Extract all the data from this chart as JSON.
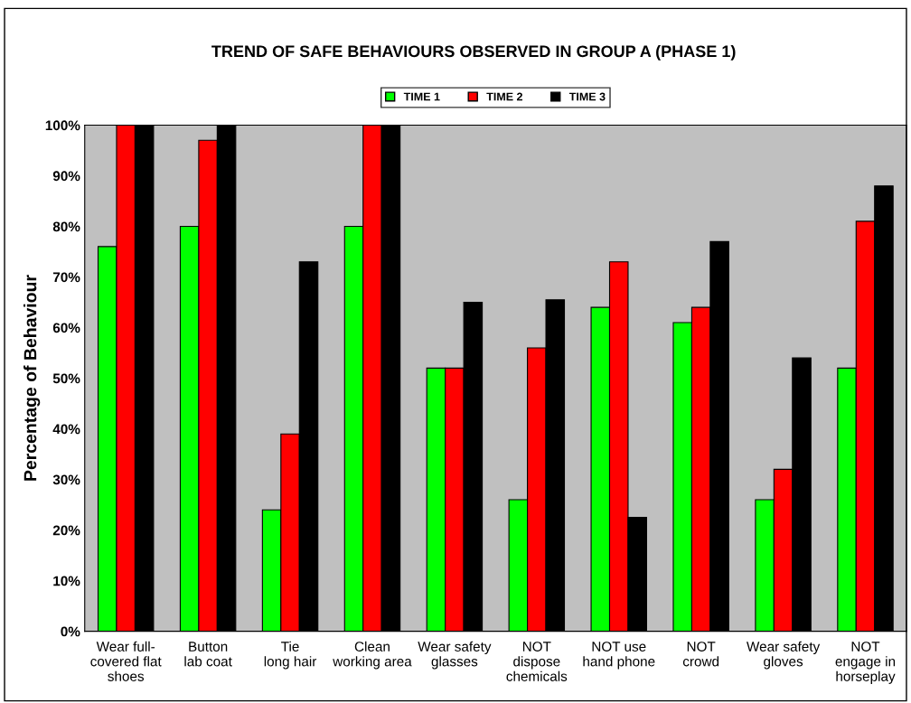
{
  "chart_data": {
    "type": "bar",
    "title": "TREND OF SAFE BEHAVIOURS OBSERVED IN GROUP A (PHASE 1)",
    "ylabel": "Percentage of Behaviour",
    "categories": [
      "Wear full-\ncovered flat\nshoes",
      "Button\nlab coat",
      "Tie\nlong hair",
      "Clean\nworking area",
      "Wear safety\nglasses",
      "NOT\ndispose\nchemicals",
      "NOT use\nhand phone",
      "NOT\ncrowd",
      "Wear safety\ngloves",
      "NOT\nengage in\nhorseplay"
    ],
    "series": [
      {
        "name": "TIME 1",
        "color": "#00ff00",
        "values": [
          76,
          80,
          24,
          80,
          52,
          26,
          64,
          61,
          26,
          52
        ]
      },
      {
        "name": "TIME 2",
        "color": "#ff0000",
        "values": [
          100,
          97,
          39,
          100,
          52,
          56,
          73,
          64,
          32,
          81
        ]
      },
      {
        "name": "TIME 3",
        "color": "#000000",
        "values": [
          100,
          100,
          73,
          100,
          65,
          65.5,
          22.5,
          77,
          54,
          88
        ]
      }
    ],
    "ylim": [
      0,
      100
    ],
    "yticks": [
      {
        "value": 0,
        "label": "0%"
      },
      {
        "value": 10,
        "label": "10%"
      },
      {
        "value": 20,
        "label": "20%"
      },
      {
        "value": 30,
        "label": "30%"
      },
      {
        "value": 40,
        "label": "40%"
      },
      {
        "value": 50,
        "label": "50%"
      },
      {
        "value": 60,
        "label": "60%"
      },
      {
        "value": 70,
        "label": "70%"
      },
      {
        "value": 80,
        "label": "80%"
      },
      {
        "value": 90,
        "label": "90%"
      },
      {
        "value": 100,
        "label": "100%"
      }
    ],
    "grid": false,
    "legend": "top"
  }
}
